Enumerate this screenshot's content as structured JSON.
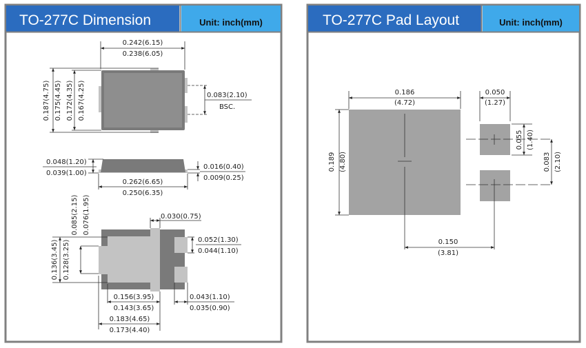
{
  "colors": {
    "title_bg": "#2b6cbf",
    "unit_bg": "#3fa9ea",
    "body_dark": "#7a7a7a",
    "lead_light": "#c3c3c3",
    "pad": "#a3a3a3"
  },
  "dimension_panel": {
    "title": "TO-277C Dimension",
    "unit": "Unit: inch(mm)",
    "top_view": {
      "width_max": "0.242(6.15)",
      "width_min": "0.238(6.05)",
      "h1": "0.187(4.75)",
      "h2": "0.175(4.45)",
      "h3": "0.172(4.35)",
      "h4": "0.167(4.25)",
      "pitch": "0.083(2.10)",
      "pitch_note": "BSC."
    },
    "side_view": {
      "height_max": "0.048(1.20)",
      "height_min": "0.039(1.00)",
      "lead_max": "0.016(0.40)",
      "lead_min": "0.009(0.25)",
      "length_max": "0.262(6.65)",
      "length_min": "0.250(6.35)"
    },
    "bottom_view": {
      "a_max": "0.085(2.15)",
      "a_min": "0.076(1.95)",
      "tab": "0.030(0.75)",
      "pad_h_max": "0.052(1.30)",
      "pad_h_min": "0.044(1.10)",
      "b_max": "0.136(3.45)",
      "b_min": "0.128(3.25)",
      "c_max": "0.156(3.95)",
      "c_min": "0.143(3.65)",
      "d_max": "0.183(4.65)",
      "d_min": "0.173(4.40)",
      "pad_w_max": "0.043(1.10)",
      "pad_w_min": "0.035(0.90)"
    }
  },
  "pad_panel": {
    "title": "TO-277C Pad Layout",
    "unit": "Unit: inch(mm)",
    "big_w_in": "0.186",
    "big_w_mm": "(4.72)",
    "big_h_in": "0.189",
    "big_h_mm": "(4.80)",
    "small_w_in": "0.050",
    "small_w_mm": "(1.27)",
    "small_h_in": "0.055",
    "small_h_mm": "(1.40)",
    "pitch_in": "0.083",
    "pitch_mm": "(2.10)",
    "span_in": "0.150",
    "span_mm": "(3.81)"
  }
}
